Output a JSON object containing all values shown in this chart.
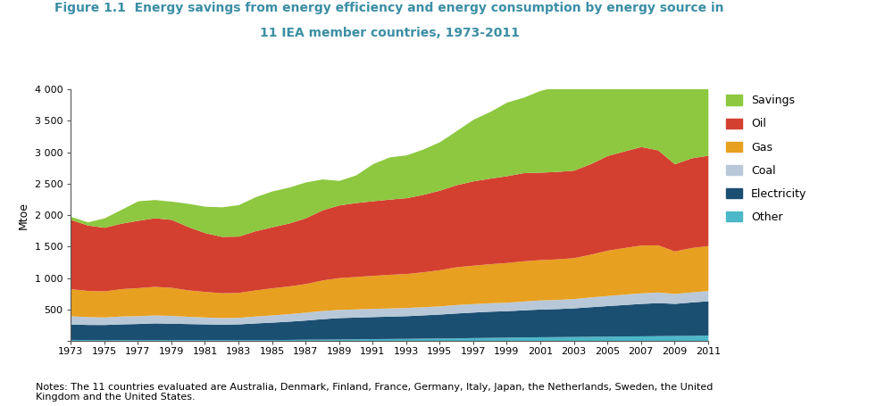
{
  "title_line1": "Figure 1.1  Energy savings from energy efficiency and energy consumption by energy source in",
  "title_line2": "11 IEA member countries, 1973-2011",
  "title_color": "#3B8EA5",
  "ylabel": "Mtoe",
  "note": "Notes: The 11 countries evaluated are Australia, Denmark, Finland, France, Germany, Italy, Japan, the Netherlands, Sweden, the United\nKingdom and the United States.",
  "years": [
    1973,
    1974,
    1975,
    1976,
    1977,
    1978,
    1979,
    1980,
    1981,
    1982,
    1983,
    1984,
    1985,
    1986,
    1987,
    1988,
    1989,
    1990,
    1991,
    1992,
    1993,
    1994,
    1995,
    1996,
    1997,
    1998,
    1999,
    2000,
    2001,
    2002,
    2003,
    2004,
    2005,
    2006,
    2007,
    2008,
    2009,
    2010,
    2011
  ],
  "series": {
    "Other": [
      25,
      23,
      22,
      22,
      23,
      23,
      22,
      22,
      22,
      22,
      22,
      22,
      22,
      25,
      28,
      30,
      32,
      35,
      38,
      40,
      42,
      45,
      48,
      50,
      55,
      58,
      62,
      65,
      68,
      70,
      72,
      75,
      78,
      80,
      82,
      85,
      88,
      90,
      95
    ],
    "Electricity": [
      245,
      240,
      240,
      250,
      255,
      265,
      260,
      255,
      250,
      245,
      250,
      265,
      278,
      290,
      305,
      325,
      340,
      345,
      350,
      355,
      360,
      370,
      380,
      395,
      405,
      415,
      420,
      430,
      440,
      445,
      455,
      470,
      485,
      500,
      515,
      525,
      510,
      530,
      545
    ],
    "Coal": [
      130,
      125,
      120,
      125,
      125,
      125,
      125,
      115,
      110,
      105,
      105,
      110,
      115,
      120,
      125,
      130,
      130,
      130,
      130,
      130,
      130,
      130,
      130,
      135,
      135,
      135,
      135,
      140,
      145,
      145,
      148,
      155,
      160,
      165,
      168,
      168,
      158,
      160,
      162
    ],
    "Gas": [
      430,
      415,
      415,
      435,
      445,
      455,
      445,
      420,
      405,
      395,
      395,
      415,
      430,
      440,
      455,
      485,
      505,
      515,
      525,
      535,
      540,
      555,
      575,
      600,
      610,
      620,
      630,
      640,
      640,
      645,
      650,
      680,
      720,
      740,
      760,
      750,
      675,
      705,
      715
    ],
    "Oil": [
      1100,
      1040,
      1010,
      1040,
      1070,
      1090,
      1080,
      1005,
      935,
      895,
      895,
      940,
      970,
      1000,
      1045,
      1115,
      1155,
      1175,
      1185,
      1195,
      1205,
      1230,
      1265,
      1305,
      1340,
      1360,
      1380,
      1400,
      1390,
      1390,
      1390,
      1440,
      1505,
      1535,
      1565,
      1510,
      1385,
      1425,
      1435
    ],
    "Savings": [
      50,
      50,
      150,
      220,
      310,
      290,
      290,
      370,
      420,
      470,
      500,
      540,
      570,
      570,
      570,
      490,
      390,
      440,
      590,
      670,
      680,
      720,
      770,
      860,
      980,
      1060,
      1170,
      1200,
      1300,
      1350,
      1420,
      1460,
      1510,
      1490,
      1590,
      1580,
      1490,
      1400,
      1430
    ]
  },
  "colors": {
    "Other": "#4CB8C8",
    "Electricity": "#1B4F72",
    "Coal": "#B8C8D8",
    "Gas": "#E8A020",
    "Oil": "#D44030",
    "Savings": "#8DC840"
  },
  "ylim": [
    0,
    4000
  ],
  "yticks": [
    0,
    500,
    1000,
    1500,
    2000,
    2500,
    3000,
    3500,
    4000
  ],
  "ytick_labels": [
    "",
    "500",
    "1 000",
    "1 500",
    "2 000",
    "2 500",
    "3 000",
    "3 500",
    "4 000"
  ],
  "xtick_years": [
    1973,
    1975,
    1977,
    1979,
    1981,
    1983,
    1985,
    1987,
    1989,
    1991,
    1993,
    1995,
    1997,
    1999,
    2001,
    2003,
    2005,
    2007,
    2009,
    2011
  ],
  "legend_order": [
    "Savings",
    "Oil",
    "Gas",
    "Coal",
    "Electricity",
    "Other"
  ]
}
